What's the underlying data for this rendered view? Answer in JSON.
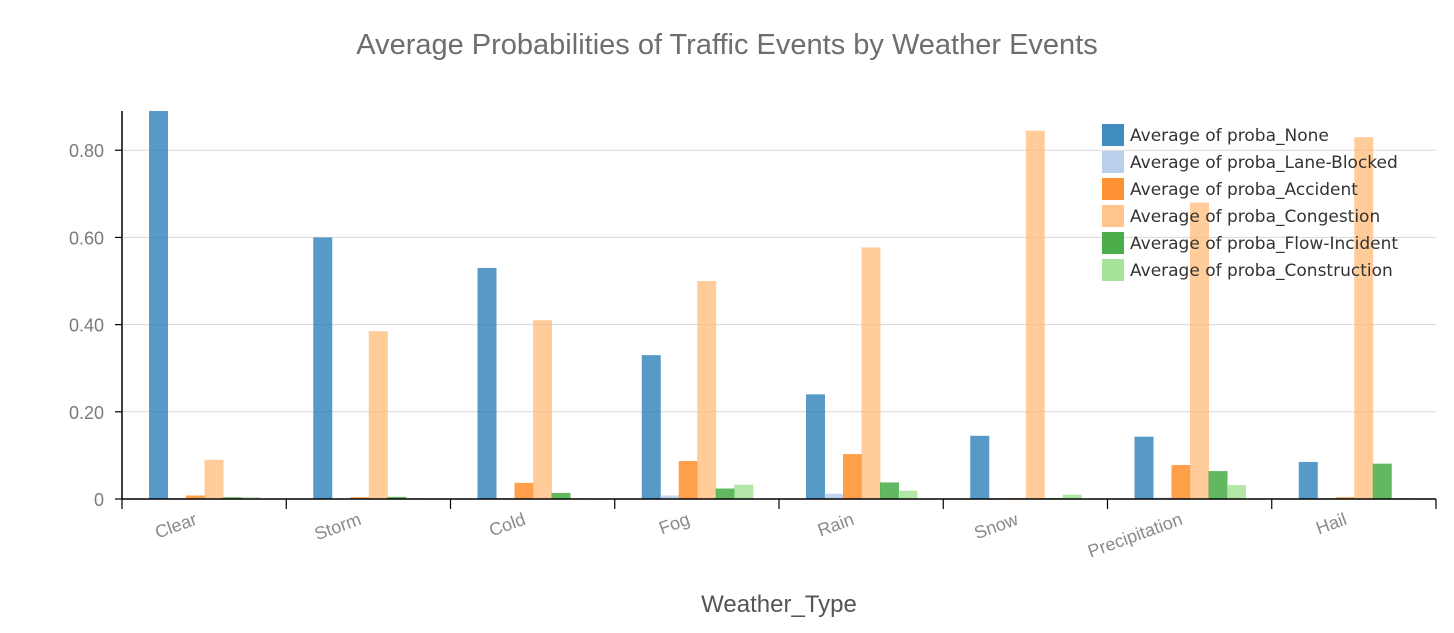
{
  "chart_data": {
    "type": "bar",
    "title": "Average Probabilities of Traffic Events by Weather Events",
    "xlabel": "Weather_Type",
    "ylabel": "",
    "ylim": [
      0,
      0.89
    ],
    "yticks": [
      0,
      0.2,
      0.4,
      0.6,
      0.8
    ],
    "ytick_labels": [
      "0",
      "0.20",
      "0.40",
      "0.60",
      "0.80"
    ],
    "grid": true,
    "legend_position": "top-right",
    "categories": [
      "Clear",
      "Storm",
      "Cold",
      "Fog",
      "Rain",
      "Snow",
      "Precipitation",
      "Hail"
    ],
    "series": [
      {
        "name": "Average of proba_None",
        "color": "#1f77b4",
        "values": [
          0.89,
          0.6,
          0.53,
          0.33,
          0.24,
          0.145,
          0.143,
          0.085
        ]
      },
      {
        "name": "Average of proba_Lane-Blocked",
        "color": "#aec7e8",
        "values": [
          0.002,
          0.001,
          0.002,
          0.008,
          0.012,
          0.002,
          0.003,
          0.002
        ]
      },
      {
        "name": "Average of proba_Accident",
        "color": "#ff7f0e",
        "values": [
          0.008,
          0.004,
          0.037,
          0.087,
          0.103,
          0.002,
          0.078,
          0.004
        ]
      },
      {
        "name": "Average of proba_Congestion",
        "color": "#ffbb78",
        "values": [
          0.09,
          0.385,
          0.41,
          0.5,
          0.577,
          0.845,
          0.68,
          0.83
        ]
      },
      {
        "name": "Average of proba_Flow-Incident",
        "color": "#2ca02c",
        "values": [
          0.004,
          0.005,
          0.014,
          0.024,
          0.038,
          0.002,
          0.064,
          0.081
        ]
      },
      {
        "name": "Average of proba_Construction",
        "color": "#98df8a",
        "values": [
          0.004,
          0.002,
          0.002,
          0.033,
          0.019,
          0.01,
          0.032,
          0.002
        ]
      }
    ]
  }
}
